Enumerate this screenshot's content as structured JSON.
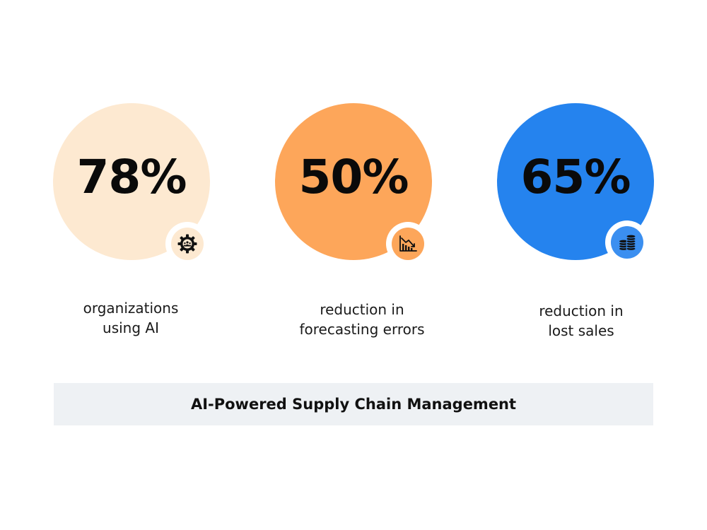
{
  "stats": [
    {
      "value": "78%",
      "caption_line1": "organizations",
      "caption_line2": "using AI",
      "circle_color": "#fde9d1",
      "badge_color": "#fde9d1",
      "icon": "gear-people-icon"
    },
    {
      "value": "50%",
      "caption_line1": "reduction in",
      "caption_line2": "forecasting errors",
      "circle_color": "#fda65a",
      "badge_color": "#fda65a",
      "icon": "declining-chart-icon"
    },
    {
      "value": "65%",
      "caption_line1": "reduction in",
      "caption_line2": "lost sales",
      "circle_color": "#2583ee",
      "badge_color": "#3b8ff0",
      "icon": "coin-stacks-icon"
    }
  ],
  "banner": {
    "title": "AI-Powered Supply Chain Management",
    "background": "#eef1f4"
  }
}
